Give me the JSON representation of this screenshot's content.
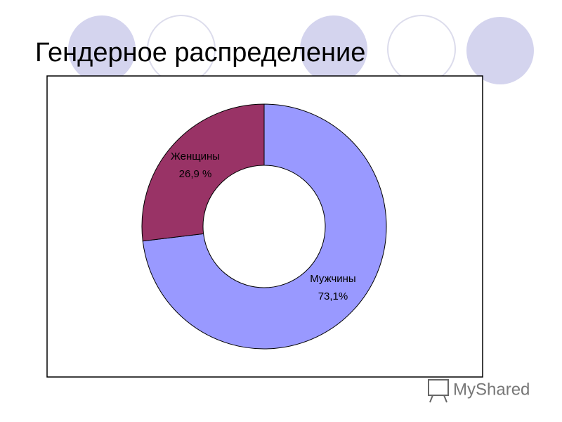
{
  "chart_data": {
    "type": "donut",
    "title": "Гендерное распределение",
    "categories": [
      "Мужчины",
      "Женщины"
    ],
    "values": [
      73.1,
      26.9
    ],
    "value_labels": [
      "73,1%",
      "26,9 %"
    ],
    "colors": [
      "#9999ff",
      "#993366"
    ]
  },
  "watermark": "MyShared"
}
